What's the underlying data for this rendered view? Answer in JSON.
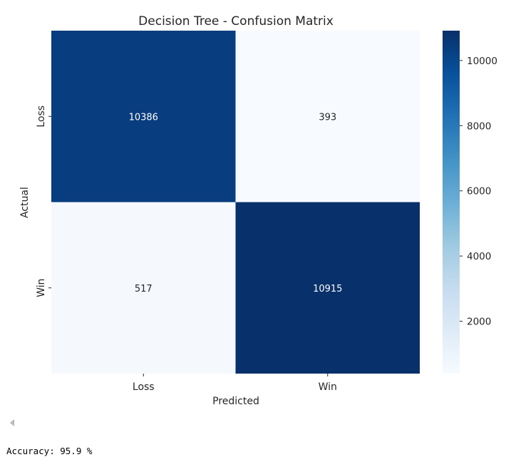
{
  "chart_data": {
    "type": "heatmap",
    "title": "Decision Tree - Confusion Matrix",
    "xlabel": "Predicted",
    "ylabel": "Actual",
    "x_categories": [
      "Loss",
      "Win"
    ],
    "y_categories": [
      "Loss",
      "Win"
    ],
    "values": [
      [
        10386,
        393
      ],
      [
        517,
        10915
      ]
    ],
    "colormap": "Blues",
    "colorbar": {
      "min": 393,
      "max": 10915,
      "ticks": [
        2000,
        4000,
        6000,
        8000,
        10000
      ]
    },
    "annotation_colors": {
      "light": "#ffffff",
      "dark": "#262626"
    },
    "grid": false
  },
  "output": {
    "text": "Accuracy: 95.9 %"
  }
}
